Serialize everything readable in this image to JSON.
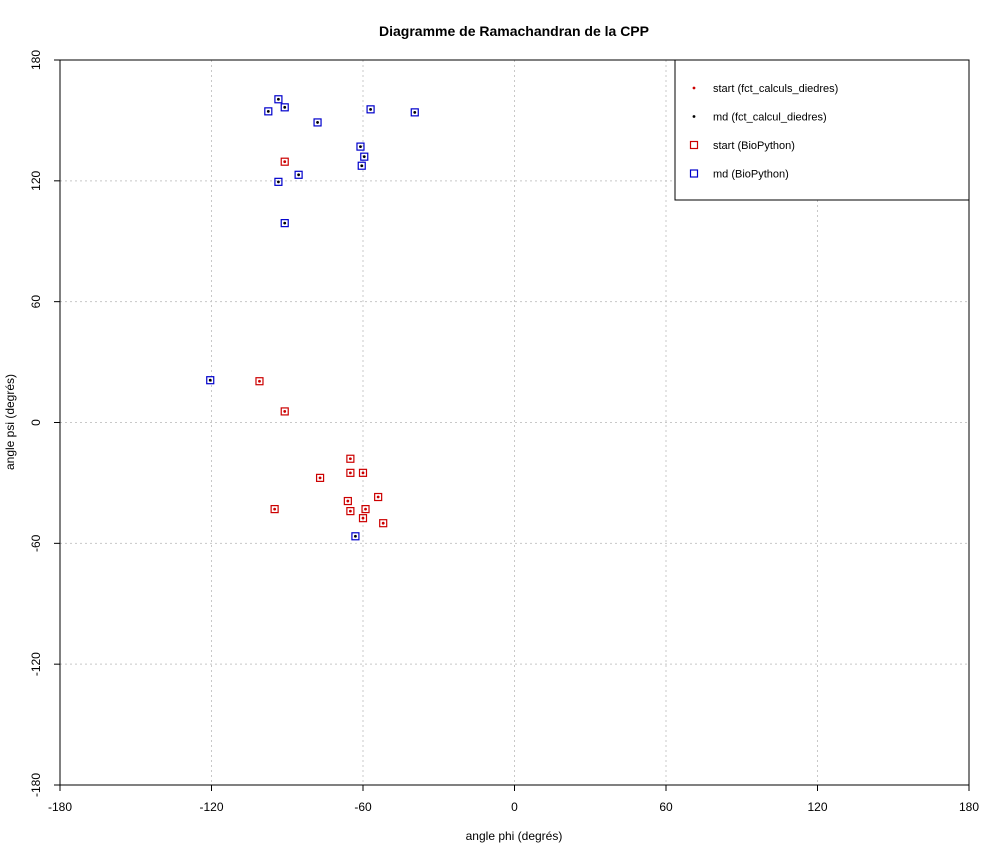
{
  "chart_data": {
    "type": "scatter",
    "title": "Diagramme de Ramachandran de la CPP",
    "xlabel": "angle phi (degrés)",
    "ylabel": "angle psi (degrés)",
    "xlim": [
      -180,
      180
    ],
    "ylim": [
      -180,
      180
    ],
    "xticks": [
      "-180",
      "-120",
      "-60",
      "0",
      "60",
      "120",
      "180"
    ],
    "yticks": [
      "-180",
      "-120",
      "-60",
      "0",
      "60",
      "120",
      "180"
    ],
    "xtick_values": [
      -180,
      -120,
      -60,
      0,
      60,
      120,
      180
    ],
    "ytick_values": [
      -180,
      -120,
      -60,
      0,
      60,
      120,
      180
    ],
    "gridlines": [
      -120,
      -60,
      0,
      60,
      120
    ],
    "grid": true,
    "legend_position": "top-right",
    "series": [
      {
        "name": "start (fct_calculs_diedres)",
        "marker": "dot",
        "color": "#cc0000",
        "points": [
          [
            -91,
            129.5
          ],
          [
            -65,
            -18
          ],
          [
            -65,
            -25
          ],
          [
            -60,
            -25
          ],
          [
            -77,
            -27.5
          ],
          [
            -54,
            -37
          ],
          [
            -66,
            -39
          ],
          [
            -95,
            -43
          ],
          [
            -65,
            -44
          ],
          [
            -59,
            -43
          ],
          [
            -60,
            -47.5
          ],
          [
            -52,
            -50
          ],
          [
            -101,
            20.5
          ],
          [
            -91,
            5.5
          ]
        ]
      },
      {
        "name": "md (fct_calcul_diedres)",
        "marker": "dot",
        "color": "#000000",
        "points": [
          [
            -93.5,
            160.5
          ],
          [
            -97.5,
            154.5
          ],
          [
            -91,
            156.5
          ],
          [
            -78,
            149
          ],
          [
            -57,
            155.5
          ],
          [
            -39.5,
            154
          ],
          [
            -61,
            137
          ],
          [
            -59.5,
            132
          ],
          [
            -60.5,
            127.5
          ],
          [
            -85.5,
            123
          ],
          [
            -93.5,
            119.5
          ],
          [
            -91,
            99
          ],
          [
            -120.5,
            21
          ],
          [
            -63,
            -56.5
          ]
        ]
      },
      {
        "name": "start (BioPython)",
        "marker": "square",
        "color": "#cc0000",
        "points": [
          [
            -91,
            129.5
          ],
          [
            -65,
            -18
          ],
          [
            -65,
            -25
          ],
          [
            -60,
            -25
          ],
          [
            -77,
            -27.5
          ],
          [
            -54,
            -37
          ],
          [
            -66,
            -39
          ],
          [
            -95,
            -43
          ],
          [
            -65,
            -44
          ],
          [
            -59,
            -43
          ],
          [
            -60,
            -47.5
          ],
          [
            -52,
            -50
          ],
          [
            -101,
            20.5
          ],
          [
            -91,
            5.5
          ]
        ]
      },
      {
        "name": "md (BioPython)",
        "marker": "square",
        "color": "#0000cc",
        "points": [
          [
            -93.5,
            160.5
          ],
          [
            -97.5,
            154.5
          ],
          [
            -91,
            156.5
          ],
          [
            -78,
            149
          ],
          [
            -57,
            155.5
          ],
          [
            -39.5,
            154
          ],
          [
            -61,
            137
          ],
          [
            -59.5,
            132
          ],
          [
            -60.5,
            127.5
          ],
          [
            -85.5,
            123
          ],
          [
            -93.5,
            119.5
          ],
          [
            -91,
            99
          ],
          [
            -120.5,
            21
          ],
          [
            -63,
            -56.5
          ]
        ]
      }
    ]
  }
}
